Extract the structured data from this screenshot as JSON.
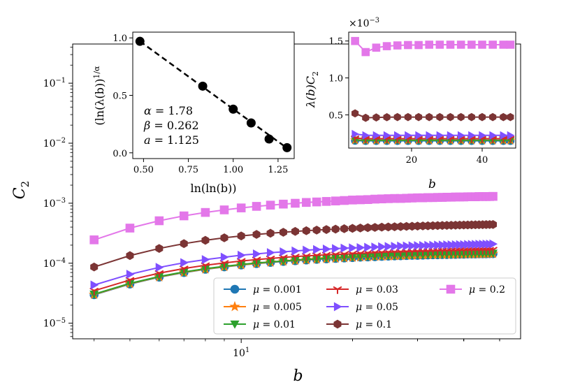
{
  "chart_data": [
    {
      "id": "main",
      "type": "line",
      "xscale": "log",
      "yscale": "log",
      "xlabel": "b",
      "ylabel": "C",
      "ylabel_sub": "2",
      "xlim": [
        3.5,
        57
      ],
      "ylim": [
        5.5e-06,
        0.45
      ],
      "x_ticks": [
        {
          "value": 10,
          "base": "10",
          "exp": "1"
        }
      ],
      "y_ticks": [
        {
          "value": 1e-05,
          "base": "10",
          "exp": "−5"
        },
        {
          "value": 0.0001,
          "base": "10",
          "exp": "−4"
        },
        {
          "value": 0.001,
          "base": "10",
          "exp": "−3"
        },
        {
          "value": 0.01,
          "base": "10",
          "exp": "−2"
        },
        {
          "value": 0.1,
          "base": "10",
          "exp": "−1"
        }
      ],
      "x": [
        4,
        5,
        6,
        7,
        8,
        9,
        10,
        11,
        12,
        13,
        14,
        15,
        16,
        17,
        18,
        19,
        20,
        21,
        22,
        23,
        24,
        25,
        26,
        27,
        28,
        29,
        30,
        31,
        32,
        33,
        34,
        35,
        36,
        37,
        38,
        39,
        40,
        41,
        42,
        43,
        44,
        45,
        46,
        47,
        48
      ],
      "legend": {
        "position": "lower right",
        "columns": 3
      },
      "series": [
        {
          "name": "μ = 0.001",
          "color": "#1f77b4",
          "marker": "circle",
          "order": 0,
          "values": [
            2.98e-05,
            4.49e-05,
            5.85e-05,
            6.99e-05,
            7.92e-05,
            8.68e-05,
            9.32e-05,
            9.84e-05,
            0.000103,
            0.000107,
            0.00011,
            0.000113,
            0.000116,
            0.000118,
            0.00012,
            0.000122,
            0.000124,
            0.000126,
            0.000127,
            0.000128,
            0.00013,
            0.000131,
            0.000132,
            0.000133,
            0.000134,
            0.000135,
            0.000135,
            0.000136,
            0.000137,
            0.000138,
            0.000138,
            0.000139,
            0.000139,
            0.00014,
            0.00014,
            0.000141,
            0.000141,
            0.000142,
            0.000142,
            0.000142,
            0.000143,
            0.000143,
            0.000143,
            0.000144,
            0.000144
          ]
        },
        {
          "name": "μ = 0.005",
          "color": "#ff7f0e",
          "marker": "star",
          "order": 1,
          "values": [
            3.01e-05,
            4.55e-05,
            5.91e-05,
            7.05e-05,
            7.99e-05,
            8.76e-05,
            9.4e-05,
            9.93e-05,
            0.000104,
            0.000108,
            0.000111,
            0.000114,
            0.000117,
            0.000119,
            0.000121,
            0.000123,
            0.000125,
            0.000127,
            0.000128,
            0.00013,
            0.000131,
            0.000132,
            0.000133,
            0.000134,
            0.000135,
            0.000136,
            0.000137,
            0.000137,
            0.000138,
            0.000139,
            0.000139,
            0.00014,
            0.00014,
            0.000141,
            0.000141,
            0.000142,
            0.000142,
            0.000143,
            0.000143,
            0.000143,
            0.000144,
            0.000144,
            0.000145,
            0.000145,
            0.000145
          ]
        },
        {
          "name": "μ = 0.01",
          "color": "#2ca02c",
          "marker": "triangle-down",
          "order": 2,
          "values": [
            3.05e-05,
            4.62e-05,
            6e-05,
            7.15e-05,
            8.11e-05,
            8.89e-05,
            9.54e-05,
            0.000101,
            0.000105,
            0.000109,
            0.000113,
            0.000116,
            0.000118,
            0.000121,
            0.000123,
            0.000125,
            0.000127,
            0.000128,
            0.00013,
            0.000131,
            0.000133,
            0.000134,
            0.000135,
            0.000136,
            0.000137,
            0.000138,
            0.000138,
            0.000139,
            0.00014,
            0.000141,
            0.000141,
            0.000142,
            0.000142,
            0.000143,
            0.000143,
            0.000144,
            0.000144,
            0.000145,
            0.000145,
            0.000146,
            0.000146,
            0.000146,
            0.000147,
            0.000147,
            0.000147
          ]
        },
        {
          "name": "μ = 0.03",
          "color": "#d62728",
          "marker": "tri-down",
          "order": 3,
          "values": [
            3.48e-05,
            5.26e-05,
            6.84e-05,
            8.16e-05,
            9.25e-05,
            0.000101,
            0.000109,
            0.000115,
            0.00012,
            0.000125,
            0.000129,
            0.000132,
            0.000135,
            0.000138,
            0.00014,
            0.000142,
            0.000144,
            0.000146,
            0.000148,
            0.00015,
            0.000151,
            0.000153,
            0.000154,
            0.000155,
            0.000156,
            0.000157,
            0.000158,
            0.000159,
            0.000159,
            0.00016,
            0.000161,
            0.000162,
            0.000162,
            0.000163,
            0.000163,
            0.000164,
            0.000164,
            0.000165,
            0.000165,
            0.000166,
            0.000166,
            0.000167,
            0.000167,
            0.000167,
            0.000168
          ]
        },
        {
          "name": "μ = 0.05",
          "color": "#7f4fff",
          "marker": "triangle-right",
          "order": 4,
          "values": [
            4.33e-05,
            6.55e-05,
            8.52e-05,
            0.000102,
            0.000115,
            0.000126,
            0.000136,
            0.000143,
            0.00015,
            0.000155,
            0.00016,
            0.000165,
            0.000169,
            0.000172,
            0.000175,
            0.000178,
            0.00018,
            0.000182,
            0.000184,
            0.000186,
            0.000188,
            0.00019,
            0.000191,
            0.000193,
            0.000194,
            0.000195,
            0.000196,
            0.000197,
            0.000198,
            0.000199,
            0.0002,
            0.000201,
            0.000202,
            0.000202,
            0.000203,
            0.000204,
            0.000204,
            0.000205,
            0.000206,
            0.000206,
            0.000207,
            0.000207,
            0.000208,
            0.000208,
            0.000209
          ]
        },
        {
          "name": "μ = 0.1",
          "color": "#7b3434",
          "marker": "hexagon",
          "order": 5,
          "values": [
            8.65e-05,
            0.000134,
            0.000176,
            0.000212,
            0.000241,
            0.000265,
            0.000285,
            0.000302,
            0.000316,
            0.000328,
            0.000339,
            0.000348,
            0.000356,
            0.000364,
            0.00037,
            0.000376,
            0.000381,
            0.000386,
            0.000391,
            0.000395,
            0.000399,
            0.000402,
            0.000405,
            0.000408,
            0.000411,
            0.000413,
            0.000416,
            0.000418,
            0.00042,
            0.000422,
            0.000424,
            0.000426,
            0.000427,
            0.000429,
            0.00043,
            0.000432,
            0.000433,
            0.000434,
            0.000436,
            0.000437,
            0.000438,
            0.000439,
            0.00044,
            0.000441,
            0.000442
          ]
        },
        {
          "name": "μ = 0.2",
          "color": "#e377e9",
          "marker": "square",
          "order": 6,
          "values": [
            0.000245,
            0.000385,
            0.00051,
            0.000615,
            0.000702,
            0.000774,
            0.000835,
            0.000886,
            0.000929,
            0.000966,
            0.000998,
            0.00103,
            0.00105,
            0.00107,
            0.00109,
            0.00111,
            0.00113,
            0.00114,
            0.00115,
            0.00117,
            0.00118,
            0.00119,
            0.0012,
            0.0012,
            0.00121,
            0.00122,
            0.00123,
            0.00123,
            0.00124,
            0.00124,
            0.00125,
            0.00125,
            0.00126,
            0.00126,
            0.00127,
            0.00127,
            0.00127,
            0.00128,
            0.00128,
            0.00128,
            0.00129,
            0.00129,
            0.00129,
            0.00129,
            0.0013
          ]
        }
      ]
    },
    {
      "id": "inset_left",
      "type": "scatter",
      "xlabel": "ln(ln(b))",
      "ylabel": "(ln(λ(b))",
      "ylabel_sup": "1/α",
      "xlim": [
        0.44,
        1.34
      ],
      "ylim": [
        -0.05,
        1.05
      ],
      "x_ticks": [
        "0.50",
        "0.75",
        "1.00",
        "1.25"
      ],
      "y_ticks": [
        "0.0",
        "0.5",
        "1.0"
      ],
      "points": [
        {
          "x": 0.48,
          "y": 0.97
        },
        {
          "x": 0.83,
          "y": 0.58
        },
        {
          "x": 1.0,
          "y": 0.38
        },
        {
          "x": 1.1,
          "y": 0.26
        },
        {
          "x": 1.2,
          "y": 0.12
        },
        {
          "x": 1.3,
          "y": 0.045
        }
      ],
      "fit_line": [
        {
          "x": 0.48,
          "y": 0.97
        },
        {
          "x": 1.31,
          "y": 0.03
        }
      ],
      "annotations": [
        {
          "symbol": "α",
          "value": "1.78"
        },
        {
          "symbol": "β",
          "value": "0.262"
        },
        {
          "symbol": "a",
          "value": "1.125"
        }
      ]
    },
    {
      "id": "inset_right",
      "type": "line",
      "xlabel": "b",
      "ylabel": "λ(b)C",
      "ylabel_sub": "2",
      "offset_label": {
        "base": "×10",
        "exp": "−3"
      },
      "xlim": [
        2.2,
        49.5
      ],
      "ylim": [
        0.05,
        1.62
      ],
      "x_ticks": [
        "20",
        "40"
      ],
      "y_ticks": [
        "0.5",
        "1.0",
        "1.5"
      ],
      "x": [
        4,
        7,
        10,
        13,
        16,
        19,
        22,
        25,
        28,
        31,
        34,
        37,
        40,
        43,
        46,
        48
      ],
      "series": [
        {
          "name": "μ = 0.001",
          "color": "#1f77b4",
          "marker": "circle",
          "values": [
            0.15,
            0.148,
            0.148,
            0.148,
            0.148,
            0.148,
            0.148,
            0.148,
            0.148,
            0.148,
            0.148,
            0.148,
            0.148,
            0.148,
            0.148,
            0.148
          ]
        },
        {
          "name": "μ = 0.005",
          "color": "#ff7f0e",
          "marker": "star",
          "values": [
            0.158,
            0.155,
            0.155,
            0.155,
            0.155,
            0.155,
            0.155,
            0.155,
            0.155,
            0.155,
            0.155,
            0.155,
            0.155,
            0.155,
            0.155,
            0.155
          ]
        },
        {
          "name": "μ = 0.01",
          "color": "#2ca02c",
          "marker": "triangle-down",
          "values": [
            0.16,
            0.156,
            0.156,
            0.156,
            0.156,
            0.156,
            0.156,
            0.156,
            0.156,
            0.156,
            0.156,
            0.156,
            0.156,
            0.156,
            0.156,
            0.156
          ]
        },
        {
          "name": "μ = 0.03",
          "color": "#d62728",
          "marker": "tri-down",
          "values": [
            0.185,
            0.178,
            0.178,
            0.178,
            0.178,
            0.178,
            0.178,
            0.178,
            0.178,
            0.178,
            0.178,
            0.178,
            0.178,
            0.178,
            0.178,
            0.178
          ]
        },
        {
          "name": "μ = 0.05",
          "color": "#7f4fff",
          "marker": "triangle-right",
          "values": [
            0.24,
            0.222,
            0.222,
            0.222,
            0.222,
            0.222,
            0.222,
            0.222,
            0.222,
            0.222,
            0.222,
            0.222,
            0.222,
            0.222,
            0.222,
            0.222
          ]
        },
        {
          "name": "μ = 0.1",
          "color": "#7b3434",
          "marker": "hexagon",
          "values": [
            0.52,
            0.46,
            0.465,
            0.468,
            0.47,
            0.47,
            0.47,
            0.47,
            0.47,
            0.47,
            0.47,
            0.47,
            0.47,
            0.47,
            0.47,
            0.47
          ]
        },
        {
          "name": "μ = 0.2",
          "color": "#e377e9",
          "marker": "square",
          "values": [
            1.5,
            1.35,
            1.41,
            1.43,
            1.44,
            1.445,
            1.445,
            1.45,
            1.45,
            1.45,
            1.45,
            1.45,
            1.45,
            1.45,
            1.45,
            1.45
          ]
        }
      ]
    }
  ]
}
